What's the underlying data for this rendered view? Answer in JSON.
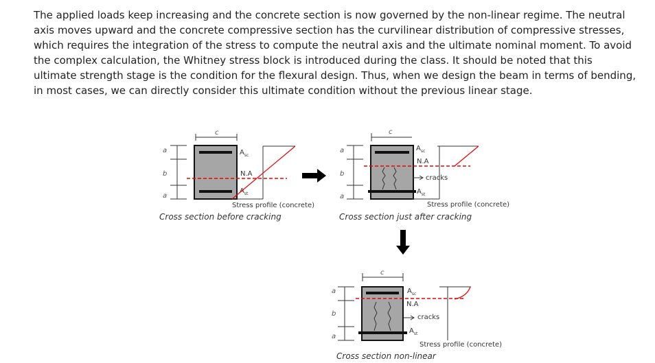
{
  "paragraph": "The applied loads keep increasing and the concrete section is now governed by the non-linear regime. The neutral axis moves upward and the concrete compressive section has the curvilinear distribution of compressive stresses, which requires the integration of the stress to compute the neutral axis and the ultimate nominal moment. To avoid the complex calculation, the Whitney stress block is introduced during the class. It should be noted that this ultimate strength stage is the condition for the flexural design. Thus, when we design the beam in terms of bending, in most cases, we can directly consider this ultimate condition without the previous linear stage.",
  "figures": [
    {
      "width_label": "c",
      "top_label": "a",
      "middle_label": "b",
      "bottom_label": "a",
      "asc": {
        "base": "A",
        "sub": "sc"
      },
      "neutral_axis": "N.A",
      "ast": {
        "base": "A",
        "sub": "st"
      },
      "stress_label": "Stress profile (concrete)",
      "caption": "Cross section before cracking"
    },
    {
      "width_label": "c",
      "top_label": "a",
      "middle_label": "b",
      "bottom_label": "a",
      "asc": {
        "base": "A",
        "sub": "sc"
      },
      "neutral_axis": "N.A",
      "cracks": "cracks",
      "ast": {
        "base": "A",
        "sub": "st"
      },
      "stress_label": "Stress profile (concrete)",
      "caption": "Cross section just after cracking"
    },
    {
      "width_label": "c",
      "top_label": "a",
      "middle_label": "b",
      "bottom_label": "a",
      "asc": {
        "base": "A",
        "sub": "sc"
      },
      "neutral_axis": "N.A",
      "cracks": "cracks",
      "ast": {
        "base": "A",
        "sub": "st"
      },
      "stress_label": "Stress profile (concrete)",
      "caption": "Cross section  non-linear"
    }
  ]
}
